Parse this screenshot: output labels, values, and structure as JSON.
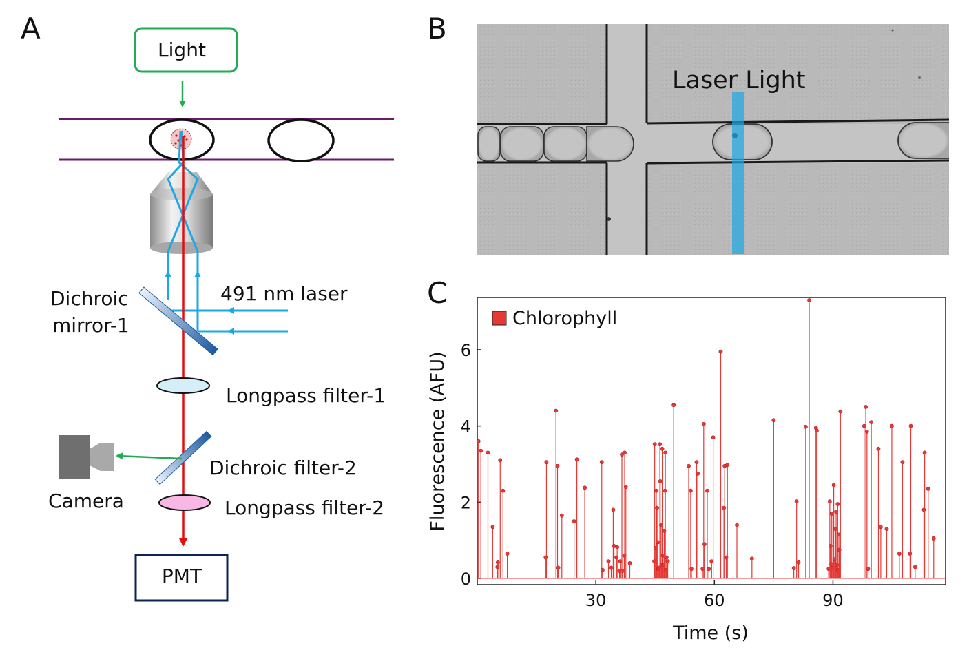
{
  "panels": {
    "a": "A",
    "b": "B",
    "c": "C"
  },
  "schematic": {
    "light": "Light",
    "dichroic1_line1": "Dichroic",
    "dichroic1_line2": "mirror-1",
    "laser": "491 nm laser",
    "longpass1": "Longpass filter-1",
    "dichroic2": "Dichroic filter-2",
    "camera": "Camera",
    "longpass2": "Longpass filter-2",
    "pmt": "PMT"
  },
  "micrograph": {
    "laser_label": "Laser Light"
  },
  "colors": {
    "light_box": "#22aa55",
    "channel": "#6a1b6a",
    "laser_blue": "#1ea7e6",
    "emission_red": "#e01010",
    "pmt_box": "#0d2350",
    "chart_red": "#e53935",
    "filter1": "#d6eef8",
    "filter2": "#f7b8e6"
  },
  "chart_data": {
    "type": "stem",
    "xlabel": "Time (s)",
    "ylabel": "Fluorescence (AFU)",
    "xlim": [
      0,
      118.5
    ],
    "ylim": [
      0,
      7.3
    ],
    "xticks": [
      30,
      60,
      90
    ],
    "yticks": [
      0,
      2,
      4,
      6
    ],
    "legend_placement": "top-left",
    "series": [
      {
        "name": "Chlorophyll",
        "color": "#e53935",
        "points": [
          [
            0.3,
            3.6
          ],
          [
            0.9,
            3.35
          ],
          [
            2.7,
            3.3
          ],
          [
            3.9,
            1.35
          ],
          [
            5.1,
            0.3
          ],
          [
            5.2,
            0.42
          ],
          [
            5.8,
            3.1
          ],
          [
            6.5,
            2.3
          ],
          [
            7.6,
            0.65
          ],
          [
            17.3,
            0.55
          ],
          [
            17.5,
            3.05
          ],
          [
            19.9,
            4.4
          ],
          [
            20.3,
            2.95
          ],
          [
            20.5,
            0.28
          ],
          [
            21.4,
            1.65
          ],
          [
            24.5,
            1.5
          ],
          [
            25.2,
            3.12
          ],
          [
            27.2,
            2.38
          ],
          [
            31.5,
            3.05
          ],
          [
            31.7,
            0.22
          ],
          [
            33.2,
            0.45
          ],
          [
            33.9,
            0.28
          ],
          [
            34.4,
            1.8
          ],
          [
            34.6,
            0.85
          ],
          [
            35.2,
            0.55
          ],
          [
            35.4,
            0.82
          ],
          [
            36.0,
            0.2
          ],
          [
            36.2,
            0.45
          ],
          [
            36.6,
            3.25
          ],
          [
            36.8,
            0.2
          ],
          [
            37.2,
            0.6
          ],
          [
            37.3,
            3.3
          ],
          [
            37.6,
            2.4
          ],
          [
            38.6,
            0.4
          ],
          [
            44.8,
            0.45
          ],
          [
            44.9,
            3.52
          ],
          [
            45.1,
            0.8
          ],
          [
            45.3,
            2.3
          ],
          [
            45.5,
            1.85
          ],
          [
            45.7,
            0.95
          ],
          [
            45.8,
            0.25
          ],
          [
            46.0,
            0.28
          ],
          [
            46.2,
            3.52
          ],
          [
            46.3,
            2.55
          ],
          [
            46.5,
            1.4
          ],
          [
            46.6,
            0.35
          ],
          [
            46.8,
            3.4
          ],
          [
            47.0,
            0.6
          ],
          [
            47.1,
            0.35
          ],
          [
            47.3,
            1.25
          ],
          [
            47.5,
            2.3
          ],
          [
            47.6,
            3.3
          ],
          [
            47.8,
            0.22
          ],
          [
            47.9,
            0.55
          ],
          [
            48.2,
            0.45
          ],
          [
            49.7,
            4.55
          ],
          [
            53.5,
            2.95
          ],
          [
            54.0,
            2.3
          ],
          [
            54.2,
            0.25
          ],
          [
            55.5,
            3.05
          ],
          [
            55.8,
            2.75
          ],
          [
            57.0,
            0.25
          ],
          [
            57.3,
            4.05
          ],
          [
            57.5,
            0.9
          ],
          [
            58.2,
            2.3
          ],
          [
            58.6,
            0.25
          ],
          [
            59.3,
            0.45
          ],
          [
            59.7,
            3.7
          ],
          [
            61.6,
            5.95
          ],
          [
            62.4,
            1.85
          ],
          [
            62.6,
            2.95
          ],
          [
            63.0,
            0.55
          ],
          [
            63.3,
            2.98
          ],
          [
            65.7,
            1.4
          ],
          [
            69.5,
            0.52
          ],
          [
            75.0,
            4.15
          ],
          [
            80.1,
            0.27
          ],
          [
            80.8,
            2.02
          ],
          [
            81.3,
            0.42
          ],
          [
            83.1,
            3.98
          ],
          [
            84.0,
            7.3
          ],
          [
            85.7,
            3.95
          ],
          [
            85.9,
            3.88
          ],
          [
            88.9,
            0.25
          ],
          [
            89.2,
            2.02
          ],
          [
            89.4,
            0.85
          ],
          [
            89.6,
            0.38
          ],
          [
            89.7,
            1.7
          ],
          [
            89.9,
            0.28
          ],
          [
            90.2,
            2.45
          ],
          [
            90.4,
            0.5
          ],
          [
            90.6,
            1.3
          ],
          [
            90.8,
            1.75
          ],
          [
            91.0,
            0.35
          ],
          [
            91.2,
            1.95
          ],
          [
            91.3,
            0.22
          ],
          [
            91.5,
            1.15
          ],
          [
            91.6,
            0.75
          ],
          [
            91.9,
            4.38
          ],
          [
            97.9,
            4.0
          ],
          [
            98.3,
            4.5
          ],
          [
            98.6,
            3.85
          ],
          [
            98.9,
            0.25
          ],
          [
            99.7,
            4.1
          ],
          [
            101.5,
            3.4
          ],
          [
            102.1,
            1.35
          ],
          [
            103.6,
            1.3
          ],
          [
            104.9,
            4.0
          ],
          [
            106.8,
            0.65
          ],
          [
            107.6,
            3.05
          ],
          [
            109.5,
            0.65
          ],
          [
            109.7,
            4.0
          ],
          [
            110.8,
            0.3
          ],
          [
            113.0,
            1.8
          ],
          [
            113.2,
            3.3
          ],
          [
            114.1,
            2.35
          ],
          [
            115.5,
            1.05
          ]
        ]
      }
    ]
  }
}
